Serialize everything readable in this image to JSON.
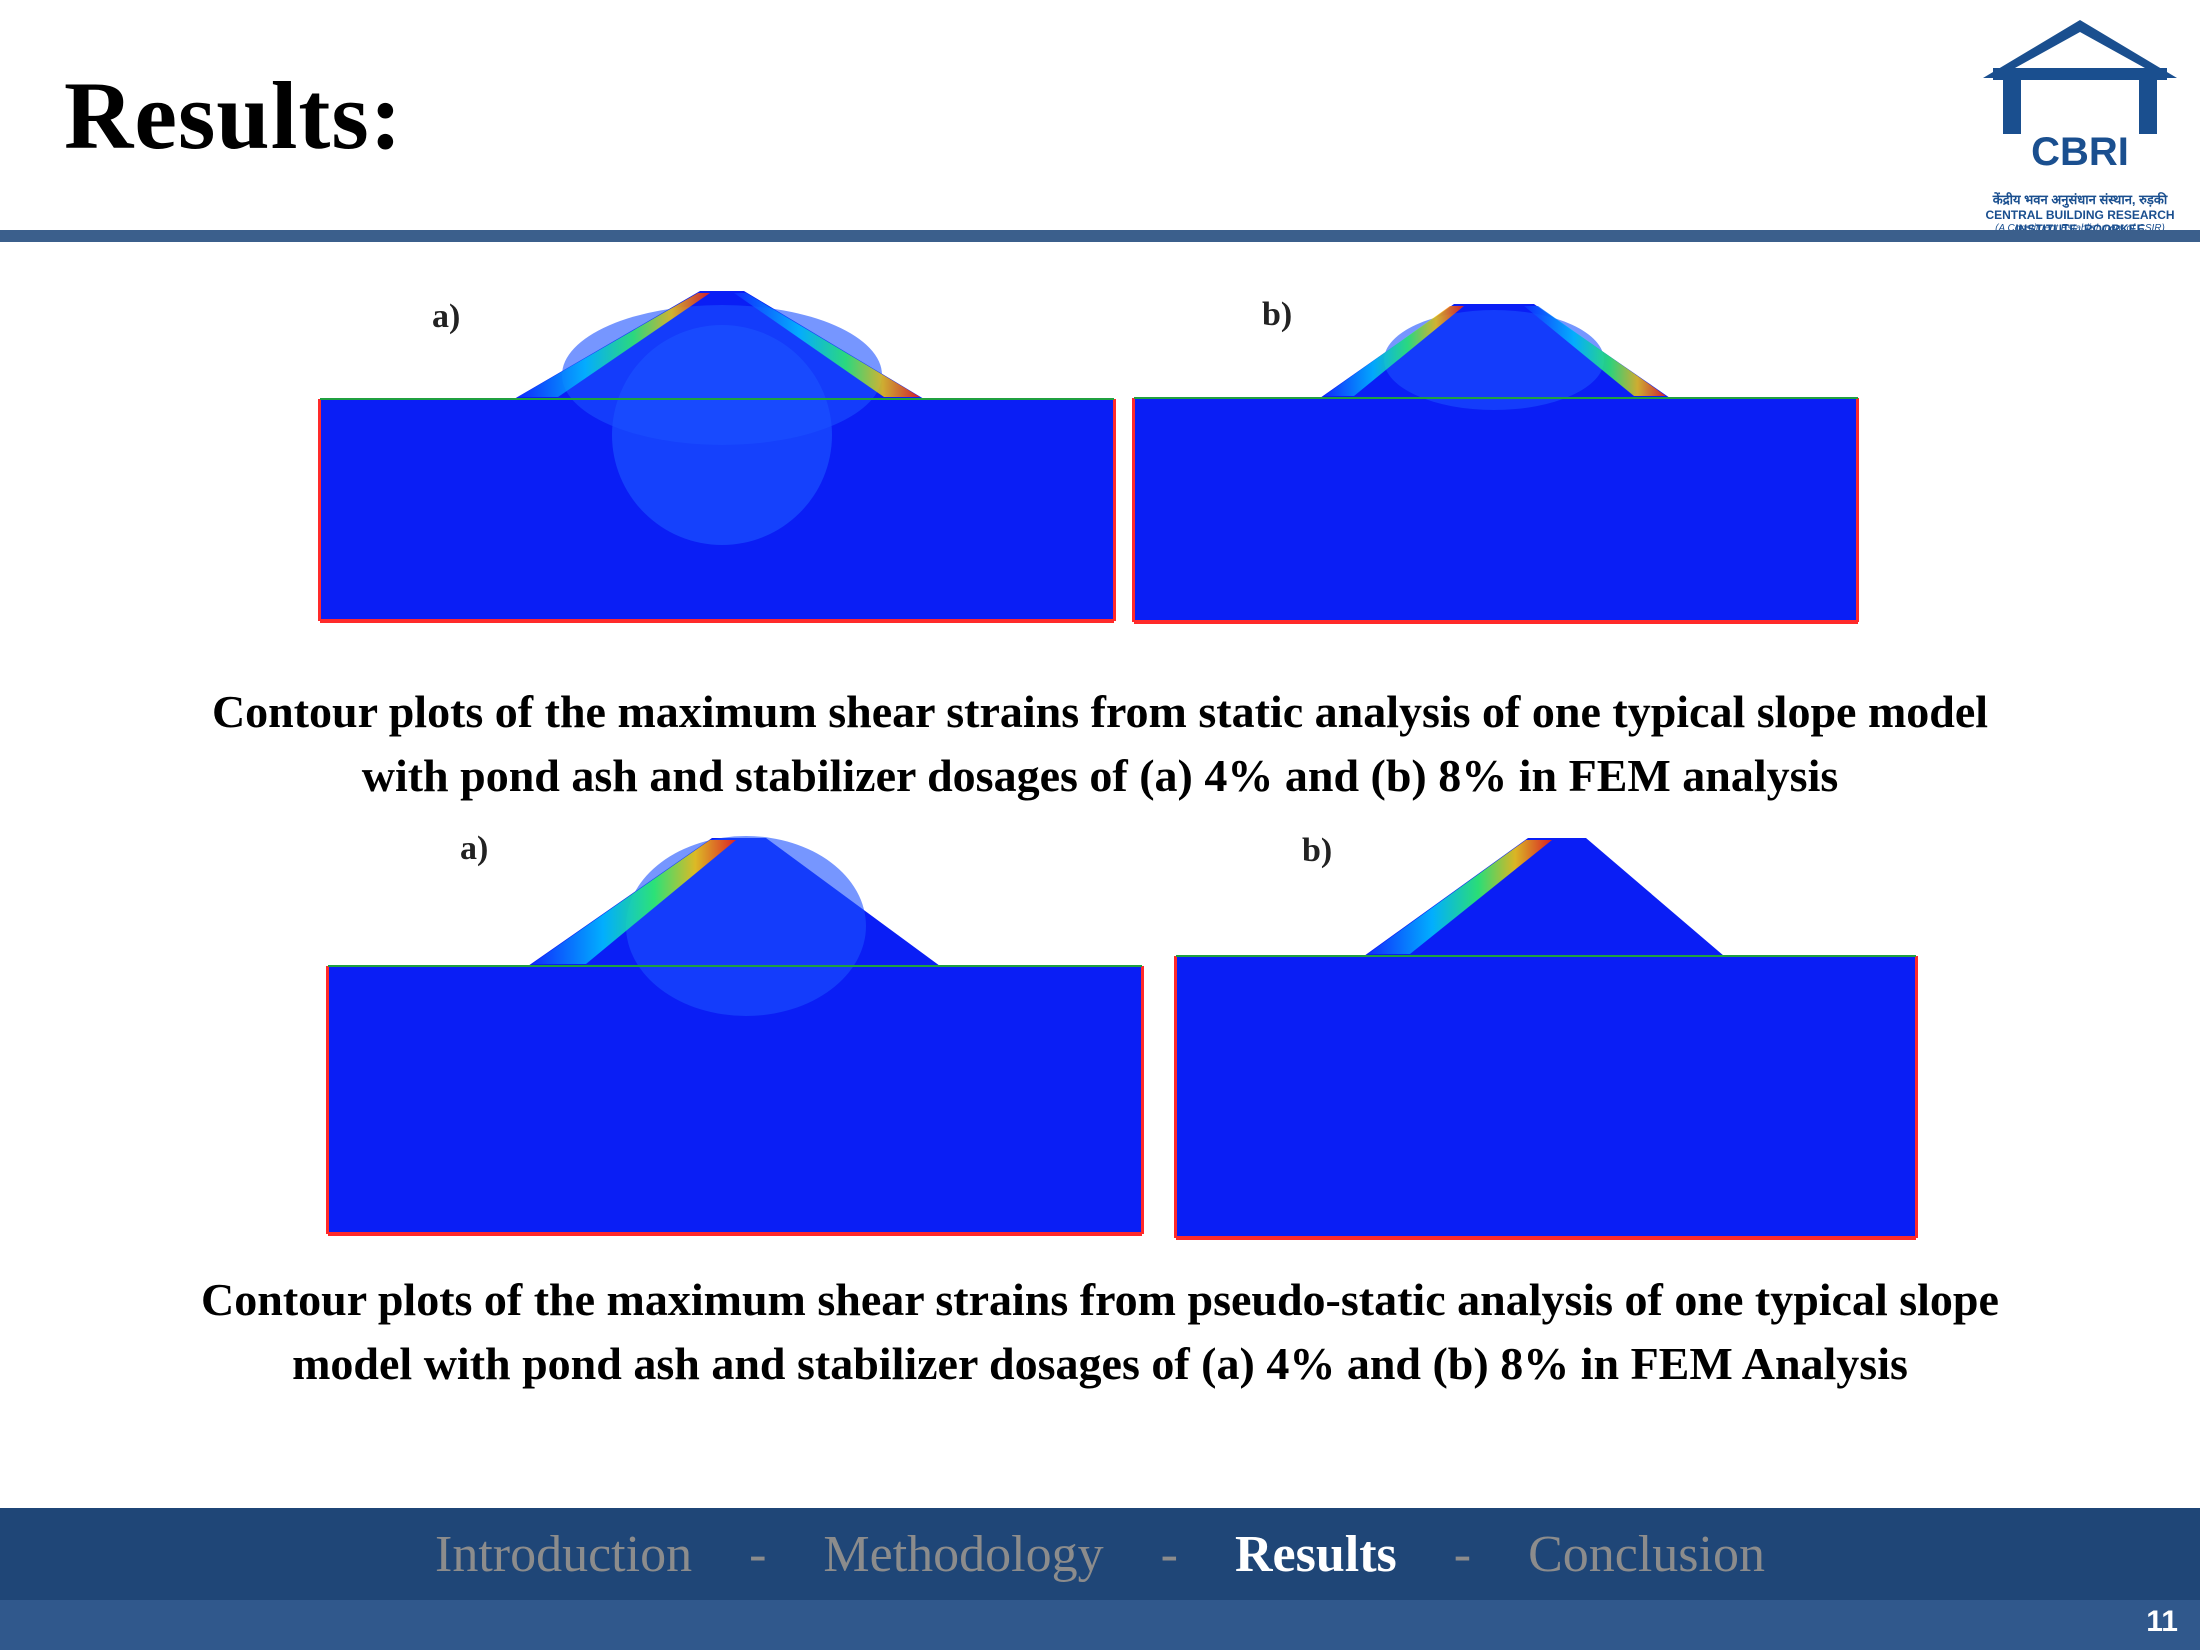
{
  "slide": {
    "title": "Results:",
    "page_number": "11"
  },
  "logo": {
    "acronym": "CBRI",
    "hindi_name": "केंद्रीय भवन अनुसंधान संस्थान, रुड़की",
    "english_name": "CENTRAL BUILDING RESEARCH INSTITUTE, ROORKEE",
    "tagline": "(A Constituent Establishment of CSIR)",
    "color": "#1a4f8f"
  },
  "static_plots": {
    "label_a": "a)",
    "label_b": "b)",
    "caption_line1": "Contour plots of the maximum shear strains from static analysis of one typical slope model",
    "caption_line2": "with pond ash and stabilizer dosages of (a) 4% and (b) 8% in FEM analysis"
  },
  "pseudo_static_plots": {
    "label_a": "a)",
    "label_b": "b)",
    "caption_line1": "Contour plots of the maximum shear strains from pseudo-static analysis of one typical slope",
    "caption_line2": "model with pond ash and stabilizer dosages of (a) 4% and (b) 8% in FEM Analysis"
  },
  "footer_nav": {
    "items": [
      "Introduction",
      "Methodology",
      "Results",
      "Conclusion"
    ],
    "separator": "-",
    "active": "Results"
  },
  "colors": {
    "contour_base": "#0a1ef5",
    "accent_rule": "#3b5f8c",
    "footer": "#1f4677"
  }
}
